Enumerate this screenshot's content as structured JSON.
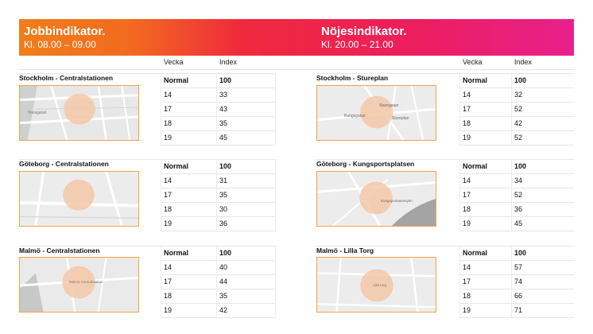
{
  "left_panel": {
    "title": "Jobbindikator.",
    "subtitle": "Kl. 08.00 – 09.00",
    "col_week": "Vecka",
    "col_index": "Index",
    "sections": [
      {
        "location": "Stockholm - Centralstationen",
        "map_labels": [
          "Vasagatan"
        ],
        "rows": [
          {
            "week": "Normal",
            "index": "100"
          },
          {
            "week": "14",
            "index": "33"
          },
          {
            "week": "17",
            "index": "43"
          },
          {
            "week": "18",
            "index": "35"
          },
          {
            "week": "19",
            "index": "45"
          }
        ]
      },
      {
        "location": "Göteborg - Centralstationen",
        "map_labels": [],
        "rows": [
          {
            "week": "Normal",
            "index": "100"
          },
          {
            "week": "14",
            "index": "31"
          },
          {
            "week": "17",
            "index": "35"
          },
          {
            "week": "18",
            "index": "30"
          },
          {
            "week": "19",
            "index": "36"
          }
        ]
      },
      {
        "location": "Malmö - Centralstationen",
        "map_labels": [
          "Malmö Centralstation"
        ],
        "rows": [
          {
            "week": "Normal",
            "index": "100"
          },
          {
            "week": "14",
            "index": "40"
          },
          {
            "week": "17",
            "index": "44"
          },
          {
            "week": "18",
            "index": "35"
          },
          {
            "week": "19",
            "index": "42"
          }
        ]
      }
    ]
  },
  "right_panel": {
    "title": "Nöjesindikator.",
    "subtitle": "Kl. 20.00 – 21.00",
    "col_week": "Vecka",
    "col_index": "Index",
    "sections": [
      {
        "location": "Stockholm - Stureplan",
        "map_labels": [
          "Kungsgatan",
          "Sturegatan",
          "Stureplan"
        ],
        "rows": [
          {
            "week": "Normal",
            "index": "100"
          },
          {
            "week": "14",
            "index": "32"
          },
          {
            "week": "17",
            "index": "52"
          },
          {
            "week": "18",
            "index": "42"
          },
          {
            "week": "19",
            "index": "52"
          }
        ]
      },
      {
        "location": "Göteborg - Kungsportsplatsen",
        "map_labels": [
          "Kungsportsavenyen"
        ],
        "rows": [
          {
            "week": "Normal",
            "index": "100"
          },
          {
            "week": "14",
            "index": "34"
          },
          {
            "week": "17",
            "index": "52"
          },
          {
            "week": "18",
            "index": "36"
          },
          {
            "week": "19",
            "index": "45"
          }
        ]
      },
      {
        "location": "Malmö - Lilla Torg",
        "map_labels": [
          "Lilla torg"
        ],
        "rows": [
          {
            "week": "Normal",
            "index": "100"
          },
          {
            "week": "14",
            "index": "57"
          },
          {
            "week": "17",
            "index": "74"
          },
          {
            "week": "18",
            "index": "66"
          },
          {
            "week": "19",
            "index": "71"
          }
        ]
      }
    ]
  },
  "colors": {
    "gradient_start": "#f07e1a",
    "gradient_end": "#e8208c",
    "map_border": "#f2a444",
    "highlight_circle": "#f5c8a8"
  }
}
